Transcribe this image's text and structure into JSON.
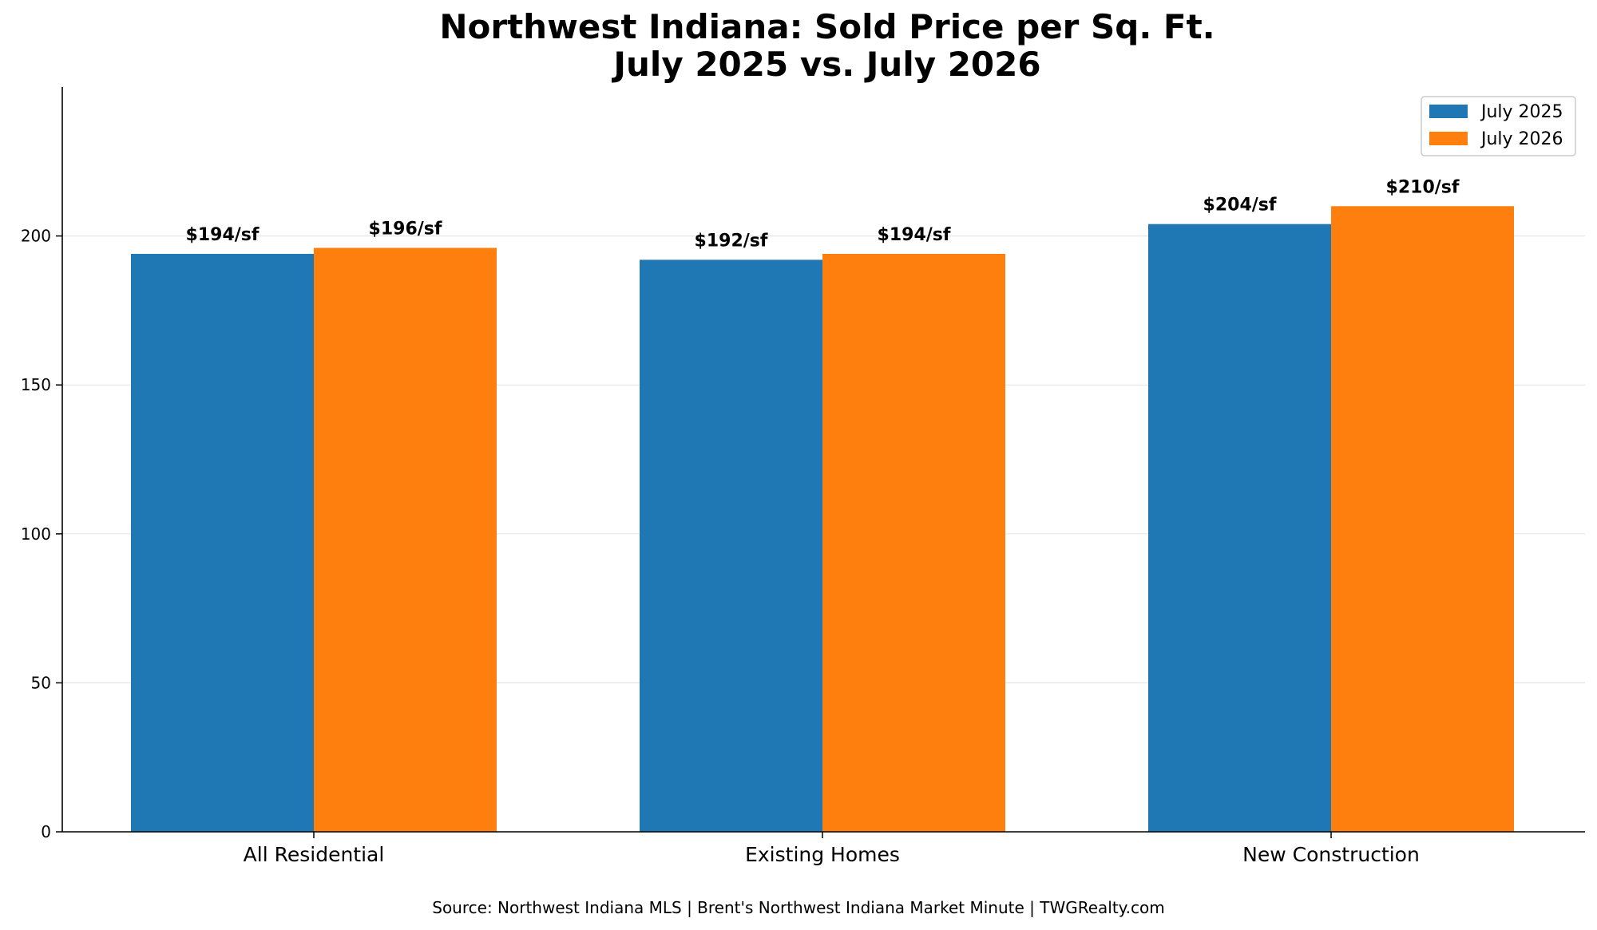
{
  "chart_data": {
    "type": "bar",
    "title": "Northwest Indiana: Sold Price per Sq. Ft.",
    "subtitle": "July 2025 vs. July 2026",
    "categories": [
      "All Residential",
      "Existing Homes",
      "New Construction"
    ],
    "series": [
      {
        "name": "July 2025",
        "color": "#1f77b4",
        "values": [
          194,
          192,
          204
        ],
        "labels": [
          "$194/sf",
          "$192/sf",
          "$204/sf"
        ]
      },
      {
        "name": "July 2026",
        "color": "#ff7f0e",
        "values": [
          196,
          194,
          210
        ],
        "labels": [
          "$196/sf",
          "$194/sf",
          "$210/sf"
        ]
      }
    ],
    "ylim": [
      0,
      250
    ],
    "yticks": [
      0,
      50,
      100,
      150,
      200
    ],
    "grid": true,
    "legend": "top-right",
    "xlabel": "",
    "ylabel": ""
  },
  "source": "Source: Northwest Indiana MLS | Brent's Northwest Indiana Market Minute | TWGRealty.com"
}
